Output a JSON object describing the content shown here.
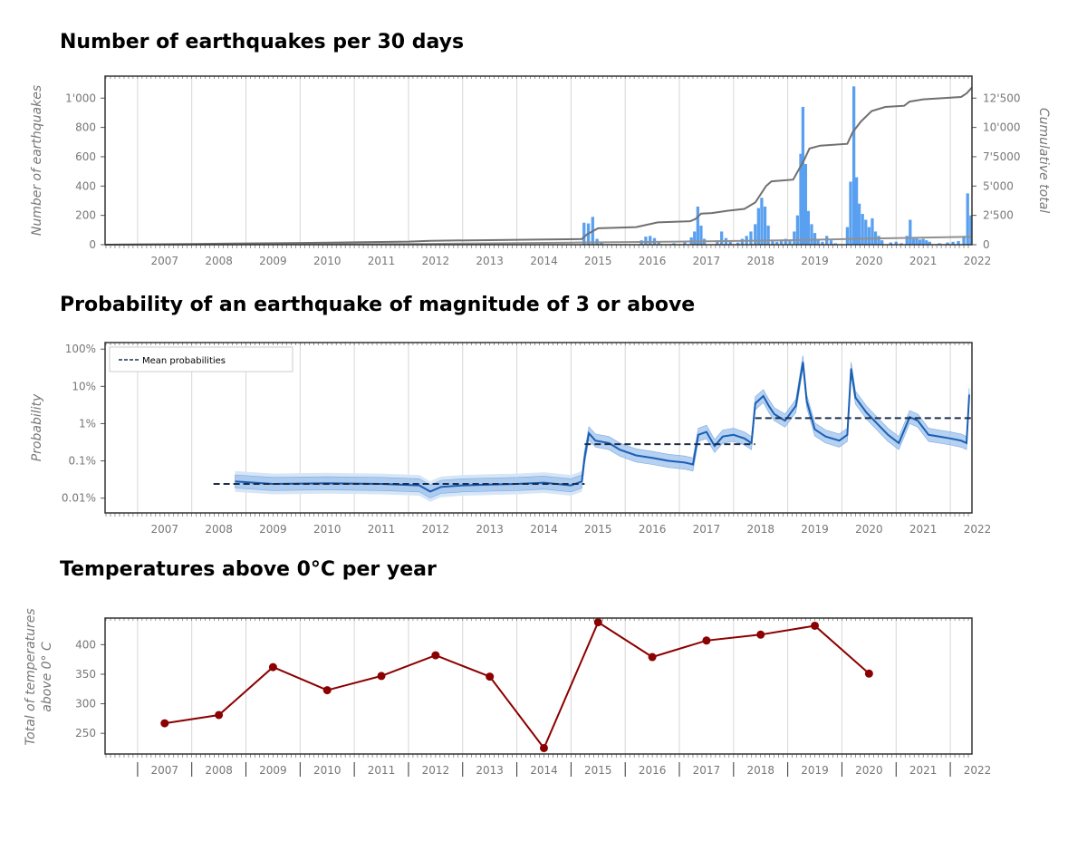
{
  "chart_data": [
    {
      "type": "bar",
      "title": "Number of earthquakes per 30 days",
      "ylabel": "Number of earthquakes",
      "y2label": "Cumulative total",
      "ylim": [
        0,
        1150
      ],
      "y2lim": [
        0,
        14375
      ],
      "yticks": [
        "0",
        "200",
        "400",
        "600",
        "800",
        "1'000"
      ],
      "y2ticks": [
        "0",
        "2'500",
        "5'000",
        "7'5000",
        "10'000",
        "12'500"
      ],
      "xlim": [
        2006.4,
        2022.4
      ],
      "xtick_labels": [
        "2007",
        "2008",
        "2009",
        "2010",
        "2011",
        "2012",
        "2013",
        "2014",
        "2015",
        "2016",
        "2017",
        "2018",
        "2019",
        "2020",
        "2021",
        "2022"
      ],
      "grid": "vertical",
      "colors": {
        "bars": "#5aa0f0",
        "cumulative": "#707070",
        "secondary": "#909090"
      },
      "bars": [
        [
          2015.24,
          150
        ],
        [
          2015.32,
          145
        ],
        [
          2015.4,
          190
        ],
        [
          2015.48,
          40
        ],
        [
          2015.56,
          15
        ],
        [
          2016.3,
          30
        ],
        [
          2016.38,
          55
        ],
        [
          2016.46,
          60
        ],
        [
          2016.54,
          45
        ],
        [
          2016.62,
          20
        ],
        [
          2016.9,
          10
        ],
        [
          2017.1,
          15
        ],
        [
          2017.22,
          50
        ],
        [
          2017.28,
          90
        ],
        [
          2017.34,
          260
        ],
        [
          2017.4,
          130
        ],
        [
          2017.46,
          40
        ],
        [
          2017.7,
          30
        ],
        [
          2017.78,
          90
        ],
        [
          2017.86,
          45
        ],
        [
          2017.94,
          20
        ],
        [
          2018.08,
          15
        ],
        [
          2018.16,
          40
        ],
        [
          2018.24,
          60
        ],
        [
          2018.32,
          90
        ],
        [
          2018.4,
          140
        ],
        [
          2018.46,
          250
        ],
        [
          2018.52,
          320
        ],
        [
          2018.58,
          260
        ],
        [
          2018.64,
          130
        ],
        [
          2018.72,
          30
        ],
        [
          2018.8,
          20
        ],
        [
          2018.88,
          35
        ],
        [
          2018.96,
          40
        ],
        [
          2019.04,
          30
        ],
        [
          2019.12,
          90
        ],
        [
          2019.18,
          200
        ],
        [
          2019.24,
          620
        ],
        [
          2019.28,
          940
        ],
        [
          2019.33,
          550
        ],
        [
          2019.38,
          230
        ],
        [
          2019.44,
          140
        ],
        [
          2019.5,
          80
        ],
        [
          2019.56,
          40
        ],
        [
          2019.64,
          20
        ],
        [
          2019.72,
          60
        ],
        [
          2019.8,
          30
        ],
        [
          2019.88,
          10
        ],
        [
          2020.1,
          120
        ],
        [
          2020.16,
          430
        ],
        [
          2020.22,
          1080
        ],
        [
          2020.27,
          460
        ],
        [
          2020.32,
          280
        ],
        [
          2020.38,
          210
        ],
        [
          2020.44,
          170
        ],
        [
          2020.5,
          120
        ],
        [
          2020.56,
          180
        ],
        [
          2020.62,
          90
        ],
        [
          2020.68,
          60
        ],
        [
          2020.74,
          30
        ],
        [
          2020.9,
          15
        ],
        [
          2021.0,
          20
        ],
        [
          2021.1,
          10
        ],
        [
          2021.2,
          60
        ],
        [
          2021.26,
          170
        ],
        [
          2021.32,
          40
        ],
        [
          2021.38,
          50
        ],
        [
          2021.44,
          35
        ],
        [
          2021.5,
          40
        ],
        [
          2021.56,
          30
        ],
        [
          2021.62,
          20
        ],
        [
          2021.8,
          10
        ],
        [
          2021.95,
          15
        ],
        [
          2022.05,
          20
        ],
        [
          2022.15,
          25
        ],
        [
          2022.25,
          60
        ],
        [
          2022.32,
          350
        ],
        [
          2022.38,
          200
        ]
      ],
      "cumulative": [
        [
          2006.4,
          0
        ],
        [
          2008.0,
          60
        ],
        [
          2010.0,
          150
        ],
        [
          2012.0,
          260
        ],
        [
          2012.4,
          330
        ],
        [
          2014.0,
          420
        ],
        [
          2015.2,
          480
        ],
        [
          2015.3,
          900
        ],
        [
          2015.5,
          1400
        ],
        [
          2016.2,
          1500
        ],
        [
          2016.6,
          1900
        ],
        [
          2017.2,
          2000
        ],
        [
          2017.3,
          2200
        ],
        [
          2017.4,
          2650
        ],
        [
          2017.6,
          2700
        ],
        [
          2017.9,
          2900
        ],
        [
          2018.2,
          3050
        ],
        [
          2018.4,
          3600
        ],
        [
          2018.6,
          5000
        ],
        [
          2018.7,
          5400
        ],
        [
          2019.1,
          5550
        ],
        [
          2019.3,
          7200
        ],
        [
          2019.4,
          8200
        ],
        [
          2019.6,
          8450
        ],
        [
          2020.1,
          8600
        ],
        [
          2020.2,
          9600
        ],
        [
          2020.35,
          10500
        ],
        [
          2020.55,
          11400
        ],
        [
          2020.8,
          11750
        ],
        [
          2021.15,
          11850
        ],
        [
          2021.25,
          12200
        ],
        [
          2021.5,
          12400
        ],
        [
          2022.2,
          12600
        ],
        [
          2022.3,
          12900
        ],
        [
          2022.4,
          13400
        ]
      ],
      "secondary_line": [
        [
          2006.4,
          0
        ],
        [
          2012.4,
          70
        ],
        [
          2015.0,
          180
        ],
        [
          2017.0,
          260
        ],
        [
          2019.0,
          380
        ],
        [
          2020.5,
          520
        ],
        [
          2022.4,
          680
        ]
      ]
    },
    {
      "type": "line",
      "title": "Probability of an earthquake of magnitude of 3 or above",
      "ylabel": "Probability",
      "yscale": "log",
      "yticks": [
        "0.01%",
        "0.1%",
        "1%",
        "10%",
        "100%"
      ],
      "ylim_percent": [
        0.004,
        150
      ],
      "xlim": [
        2006.4,
        2022.4
      ],
      "xtick_labels": [
        "2007",
        "2008",
        "2009",
        "2010",
        "2011",
        "2012",
        "2013",
        "2014",
        "2015",
        "2016",
        "2017",
        "2018",
        "2019",
        "2020",
        "2021",
        "2022"
      ],
      "legend": {
        "label": "Mean probabilities",
        "position": "top-left"
      },
      "colors": {
        "line": "#1a5fb4",
        "band": "#9ec2ec",
        "band_light": "#d7e6f7",
        "mean": "#1c2e4a"
      },
      "grid": "vertical",
      "series": [
        [
          2008.8,
          0.028
        ],
        [
          2009.5,
          0.024
        ],
        [
          2010.5,
          0.025
        ],
        [
          2011.5,
          0.024
        ],
        [
          2012.2,
          0.022
        ],
        [
          2012.4,
          0.015
        ],
        [
          2012.6,
          0.02
        ],
        [
          2013.0,
          0.022
        ],
        [
          2013.5,
          0.023
        ],
        [
          2014.0,
          0.024
        ],
        [
          2014.5,
          0.026
        ],
        [
          2015.0,
          0.022
        ],
        [
          2015.2,
          0.028
        ],
        [
          2015.25,
          0.12
        ],
        [
          2015.33,
          0.55
        ],
        [
          2015.45,
          0.35
        ],
        [
          2015.7,
          0.3
        ],
        [
          2015.9,
          0.2
        ],
        [
          2016.2,
          0.14
        ],
        [
          2016.5,
          0.12
        ],
        [
          2016.8,
          0.1
        ],
        [
          2017.1,
          0.09
        ],
        [
          2017.25,
          0.08
        ],
        [
          2017.35,
          0.5
        ],
        [
          2017.5,
          0.6
        ],
        [
          2017.65,
          0.25
        ],
        [
          2017.8,
          0.45
        ],
        [
          2018.0,
          0.5
        ],
        [
          2018.2,
          0.4
        ],
        [
          2018.33,
          0.3
        ],
        [
          2018.4,
          3.5
        ],
        [
          2018.55,
          5.5
        ],
        [
          2018.65,
          3.0
        ],
        [
          2018.75,
          1.8
        ],
        [
          2018.95,
          1.2
        ],
        [
          2019.15,
          3.0
        ],
        [
          2019.28,
          45
        ],
        [
          2019.35,
          4.0
        ],
        [
          2019.5,
          0.7
        ],
        [
          2019.7,
          0.45
        ],
        [
          2019.95,
          0.35
        ],
        [
          2020.1,
          0.5
        ],
        [
          2020.17,
          30
        ],
        [
          2020.25,
          5.0
        ],
        [
          2020.45,
          2.0
        ],
        [
          2020.65,
          1.0
        ],
        [
          2020.85,
          0.5
        ],
        [
          2021.05,
          0.3
        ],
        [
          2021.25,
          1.5
        ],
        [
          2021.4,
          1.2
        ],
        [
          2021.6,
          0.5
        ],
        [
          2021.8,
          0.45
        ],
        [
          2022.0,
          0.4
        ],
        [
          2022.2,
          0.35
        ],
        [
          2022.3,
          0.3
        ],
        [
          2022.35,
          6.0
        ]
      ],
      "mean_probabilities": [
        {
          "x0": 2008.4,
          "x1": 2015.25,
          "value": 0.024
        },
        {
          "x0": 2015.25,
          "x1": 2018.4,
          "value": 0.28
        },
        {
          "x0": 2018.4,
          "x1": 2022.4,
          "value": 1.4
        }
      ]
    },
    {
      "type": "line",
      "title": "Temperatures above 0°C per year",
      "ylabel": "Total of temperatures above 0° C",
      "ylim": [
        215,
        445
      ],
      "yticks": [
        "250",
        "300",
        "350",
        "400"
      ],
      "xlim": [
        2006.4,
        2022.4
      ],
      "xtick_labels": [
        "2007",
        "2008",
        "2009",
        "2010",
        "2011",
        "2012",
        "2013",
        "2014",
        "2015",
        "2016",
        "2017",
        "2018",
        "2019",
        "2020",
        "2021",
        "2022"
      ],
      "grid": "vertical",
      "colors": {
        "line": "#8b0000"
      },
      "x": [
        2007,
        2008,
        2009,
        2010,
        2011,
        2012,
        2013,
        2014,
        2015,
        2016,
        2017,
        2018,
        2019,
        2020
      ],
      "values": [
        267,
        281,
        362,
        323,
        347,
        382,
        346,
        225,
        438,
        379,
        407,
        417,
        432,
        351
      ]
    }
  ]
}
